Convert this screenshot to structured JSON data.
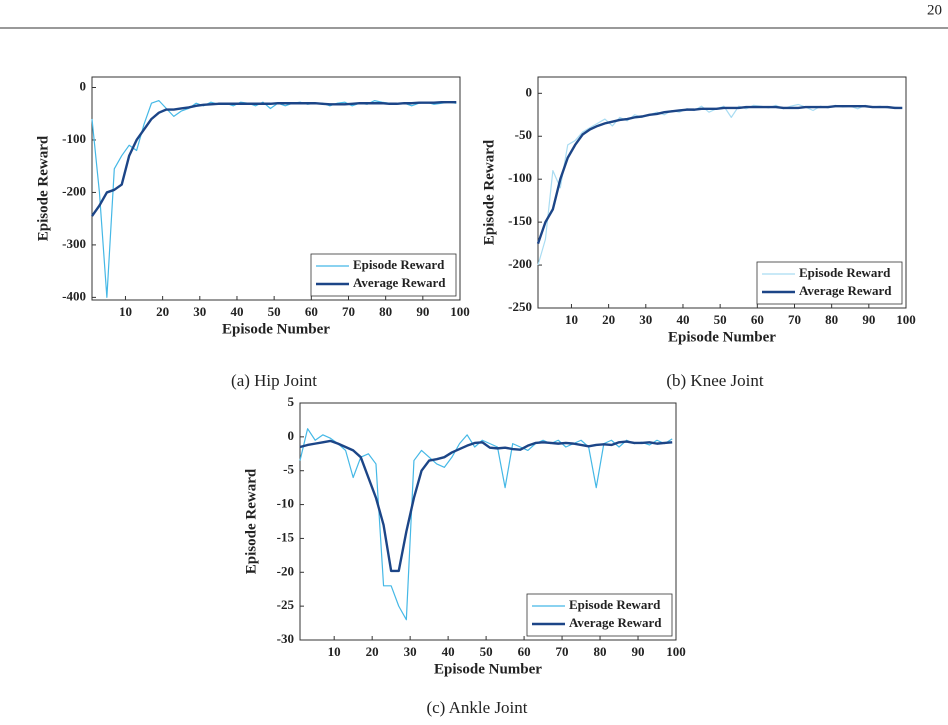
{
  "page_number": "20",
  "chart_data": [
    {
      "type": "line",
      "caption": "(a) Hip Joint",
      "x_label": "Episode Number",
      "y_label": "Episode Reward",
      "x": [
        1,
        3,
        5,
        7,
        9,
        11,
        13,
        15,
        17,
        19,
        21,
        23,
        25,
        27,
        29,
        31,
        33,
        35,
        37,
        39,
        41,
        43,
        45,
        47,
        49,
        51,
        53,
        55,
        57,
        59,
        61,
        63,
        65,
        67,
        69,
        71,
        73,
        75,
        77,
        79,
        81,
        83,
        85,
        87,
        89,
        91,
        93,
        95,
        97,
        99
      ],
      "xlim": [
        1,
        100
      ],
      "xticks": [
        10,
        20,
        30,
        40,
        50,
        60,
        70,
        80,
        90,
        100
      ],
      "ylim": [
        -405,
        20
      ],
      "yticks": [
        -400,
        -300,
        -200,
        -100,
        0
      ],
      "legend": "lower right",
      "series": [
        {
          "name": "Episode Reward",
          "color": "#45b8e6",
          "values": [
            -60,
            -200,
            -400,
            -155,
            -130,
            -110,
            -120,
            -70,
            -30,
            -25,
            -40,
            -55,
            -45,
            -40,
            -30,
            -35,
            -28,
            -32,
            -30,
            -35,
            -28,
            -30,
            -35,
            -28,
            -40,
            -30,
            -35,
            -30,
            -28,
            -32,
            -30,
            -30,
            -35,
            -30,
            -28,
            -35,
            -30,
            -32,
            -25,
            -28,
            -30,
            -32,
            -30,
            -35,
            -30,
            -28,
            -32,
            -30,
            -28,
            -30
          ]
        },
        {
          "name": "Average Reward",
          "color": "#1c4587",
          "values": [
            -245,
            -225,
            -200,
            -195,
            -185,
            -130,
            -100,
            -80,
            -60,
            -48,
            -42,
            -42,
            -40,
            -38,
            -35,
            -33,
            -32,
            -31,
            -31,
            -31,
            -31,
            -31,
            -31,
            -31,
            -31,
            -30,
            -30,
            -30,
            -30,
            -30,
            -30,
            -31,
            -32,
            -32,
            -32,
            -31,
            -30,
            -30,
            -30,
            -30,
            -31,
            -31,
            -30,
            -30,
            -29,
            -29,
            -29,
            -28,
            -28,
            -28
          ]
        }
      ]
    },
    {
      "type": "line",
      "caption": "(b) Knee Joint",
      "x_label": "Episode Number",
      "y_label": "Episode Reward",
      "x": [
        1,
        3,
        5,
        7,
        9,
        11,
        13,
        15,
        17,
        19,
        21,
        23,
        25,
        27,
        29,
        31,
        33,
        35,
        37,
        39,
        41,
        43,
        45,
        47,
        49,
        51,
        53,
        55,
        57,
        59,
        61,
        63,
        65,
        67,
        69,
        71,
        73,
        75,
        77,
        79,
        81,
        83,
        85,
        87,
        89,
        91,
        93,
        95,
        97,
        99
      ],
      "xlim": [
        1,
        100
      ],
      "xticks": [
        10,
        20,
        30,
        40,
        50,
        60,
        70,
        80,
        90,
        100
      ],
      "ylim": [
        -250,
        19
      ],
      "yticks": [
        -250,
        -200,
        -150,
        -100,
        -50,
        0
      ],
      "legend": "lower right",
      "series": [
        {
          "name": "Episode Reward",
          "color": "#a9dcf2",
          "values": [
            -200,
            -170,
            -90,
            -110,
            -60,
            -55,
            -45,
            -40,
            -35,
            -30,
            -38,
            -28,
            -32,
            -25,
            -28,
            -25,
            -22,
            -25,
            -20,
            -22,
            -18,
            -20,
            -15,
            -22,
            -18,
            -15,
            -28,
            -15,
            -18,
            -14,
            -15,
            -17,
            -14,
            -18,
            -15,
            -13,
            -16,
            -20,
            -15,
            -17,
            -14,
            -16,
            -15,
            -18,
            -14,
            -16,
            -15,
            -17,
            -16,
            -17
          ]
        },
        {
          "name": "Average Reward",
          "color": "#1c4587",
          "values": [
            -175,
            -150,
            -135,
            -100,
            -75,
            -60,
            -48,
            -42,
            -38,
            -35,
            -33,
            -31,
            -30,
            -28,
            -27,
            -25,
            -24,
            -22,
            -21,
            -20,
            -19,
            -19,
            -18,
            -18,
            -18,
            -17,
            -17,
            -17,
            -16,
            -16,
            -16,
            -16,
            -16,
            -17,
            -17,
            -17,
            -16,
            -16,
            -16,
            -16,
            -15,
            -15,
            -15,
            -15,
            -15,
            -16,
            -16,
            -16,
            -17,
            -17
          ]
        }
      ]
    },
    {
      "type": "line",
      "caption": "(c) Ankle Joint",
      "x_label": "Episode Number",
      "y_label": "Episode Reward",
      "x": [
        1,
        3,
        5,
        7,
        9,
        11,
        13,
        15,
        17,
        19,
        21,
        23,
        25,
        27,
        29,
        31,
        33,
        35,
        37,
        39,
        41,
        43,
        45,
        47,
        49,
        51,
        53,
        55,
        57,
        59,
        61,
        63,
        65,
        67,
        69,
        71,
        73,
        75,
        77,
        79,
        81,
        83,
        85,
        87,
        89,
        91,
        93,
        95,
        97,
        99
      ],
      "xlim": [
        1,
        100
      ],
      "xticks": [
        10,
        20,
        30,
        40,
        50,
        60,
        70,
        80,
        90,
        100
      ],
      "ylim": [
        -30,
        5
      ],
      "yticks": [
        -30,
        -25,
        -20,
        -15,
        -10,
        -5,
        0,
        5
      ],
      "legend": "lower right",
      "series": [
        {
          "name": "Episode Reward",
          "color": "#45b8e6",
          "values": [
            -3.5,
            1.2,
            -0.5,
            0.3,
            -0.2,
            -1,
            -2,
            -6,
            -3,
            -2.5,
            -4,
            -22,
            -22,
            -25,
            -27,
            -3.5,
            -2,
            -3,
            -4,
            -4.5,
            -3,
            -1,
            0.3,
            -1.5,
            -0.5,
            -1,
            -1.5,
            -7.5,
            -1,
            -1.5,
            -2,
            -1,
            -0.5,
            -1,
            -0.5,
            -1.5,
            -1,
            -0.5,
            -1.5,
            -7.5,
            -1,
            -0.5,
            -1.5,
            -0.5,
            -1,
            -0.8,
            -1.2,
            -0.5,
            -1,
            -0.3
          ]
        },
        {
          "name": "Average Reward",
          "color": "#1c4587",
          "values": [
            -1.5,
            -1.2,
            -1,
            -0.8,
            -0.6,
            -1,
            -1.5,
            -2,
            -3,
            -6,
            -9,
            -13,
            -19.8,
            -19.8,
            -14,
            -9,
            -5,
            -3.5,
            -3.3,
            -3,
            -2.3,
            -1.8,
            -1.3,
            -0.9,
            -0.8,
            -1.6,
            -1.7,
            -1.6,
            -1.8,
            -1.9,
            -1.3,
            -0.9,
            -0.8,
            -0.9,
            -1,
            -0.9,
            -1,
            -1.2,
            -1.4,
            -1.2,
            -1.1,
            -1.2,
            -0.8,
            -0.7,
            -0.9,
            -0.9,
            -0.8,
            -1,
            -0.9,
            -0.8
          ]
        }
      ]
    }
  ]
}
